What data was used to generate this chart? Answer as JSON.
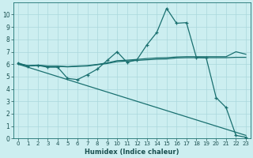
{
  "xlabel": "Humidex (Indice chaleur)",
  "bg_color": "#cceef0",
  "grid_color": "#aad8dc",
  "line_color": "#1a7070",
  "xlim": [
    -0.5,
    23.5
  ],
  "ylim": [
    0,
    11
  ],
  "xticks": [
    0,
    1,
    2,
    3,
    4,
    5,
    6,
    7,
    8,
    9,
    10,
    11,
    12,
    13,
    14,
    15,
    16,
    17,
    18,
    19,
    20,
    21,
    22,
    23
  ],
  "yticks": [
    0,
    1,
    2,
    3,
    4,
    5,
    6,
    7,
    8,
    9,
    10
  ],
  "lines": [
    {
      "x": [
        0,
        1,
        2,
        3,
        4,
        5,
        6,
        7,
        8,
        9,
        10,
        11,
        12,
        13,
        14,
        15,
        16,
        17,
        18,
        19,
        20,
        21,
        22,
        23
      ],
      "y": [
        6.1,
        5.85,
        5.9,
        5.75,
        5.75,
        4.85,
        4.75,
        5.15,
        5.6,
        6.3,
        7.0,
        6.15,
        6.35,
        7.55,
        8.55,
        10.5,
        9.3,
        9.35,
        6.55,
        6.5,
        3.3,
        2.5,
        0.25,
        0.1
      ],
      "marker": true
    },
    {
      "x": [
        0,
        1,
        2,
        3,
        4,
        5,
        6,
        7,
        8,
        9,
        10,
        11,
        12,
        13,
        14,
        15,
        16,
        17,
        18,
        19,
        20,
        21,
        22,
        23
      ],
      "y": [
        6.0,
        5.75,
        5.5,
        5.25,
        5.0,
        4.75,
        4.5,
        4.25,
        4.0,
        3.75,
        3.5,
        3.25,
        3.0,
        2.75,
        2.5,
        2.25,
        2.0,
        1.75,
        1.5,
        1.25,
        1.0,
        0.75,
        0.5,
        0.25
      ],
      "marker": false
    },
    {
      "x": [
        0,
        1,
        2,
        3,
        4,
        5,
        6,
        7,
        8,
        9,
        10,
        11,
        12,
        13,
        14,
        15,
        16,
        17,
        18,
        19,
        20,
        21,
        22,
        23
      ],
      "y": [
        6.0,
        5.85,
        5.9,
        5.82,
        5.82,
        5.78,
        5.82,
        5.85,
        5.95,
        6.05,
        6.2,
        6.25,
        6.3,
        6.35,
        6.4,
        6.42,
        6.5,
        6.52,
        6.52,
        6.52,
        6.52,
        6.52,
        6.55,
        6.55
      ],
      "marker": false
    },
    {
      "x": [
        0,
        1,
        2,
        3,
        4,
        5,
        6,
        7,
        8,
        9,
        10,
        11,
        12,
        13,
        14,
        15,
        16,
        17,
        18,
        19,
        20,
        21,
        22,
        23
      ],
      "y": [
        6.05,
        5.88,
        5.92,
        5.85,
        5.85,
        5.8,
        5.85,
        5.88,
        5.98,
        6.1,
        6.28,
        6.32,
        6.38,
        6.45,
        6.5,
        6.52,
        6.58,
        6.6,
        6.6,
        6.6,
        6.6,
        6.6,
        7.0,
        6.8
      ],
      "marker": false
    }
  ]
}
